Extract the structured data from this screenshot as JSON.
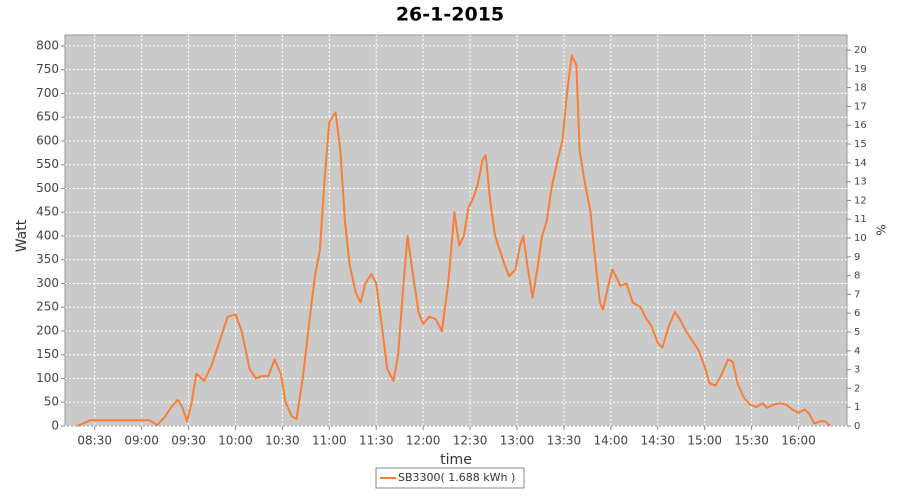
{
  "chart_data": {
    "type": "line",
    "title": "26-1-2015",
    "x_label": "time",
    "y_label": "Watt",
    "y2_label": "%",
    "xlim": [
      491,
      991
    ],
    "xticks": [
      {
        "value": 510,
        "label": "08:30"
      },
      {
        "value": 540,
        "label": "09:00"
      },
      {
        "value": 570,
        "label": "09:30"
      },
      {
        "value": 600,
        "label": "10:00"
      },
      {
        "value": 630,
        "label": "10:30"
      },
      {
        "value": 660,
        "label": "11:00"
      },
      {
        "value": 690,
        "label": "11:30"
      },
      {
        "value": 720,
        "label": "12:00"
      },
      {
        "value": 750,
        "label": "12:30"
      },
      {
        "value": 780,
        "label": "13:00"
      },
      {
        "value": 810,
        "label": "13:30"
      },
      {
        "value": 840,
        "label": "14:00"
      },
      {
        "value": 870,
        "label": "14:30"
      },
      {
        "value": 900,
        "label": "15:00"
      },
      {
        "value": 930,
        "label": "15:30"
      },
      {
        "value": 960,
        "label": "16:00"
      }
    ],
    "ylim": [
      0,
      823
    ],
    "yticks": [
      0,
      50,
      100,
      150,
      200,
      250,
      300,
      350,
      400,
      450,
      500,
      550,
      600,
      650,
      700,
      750,
      800
    ],
    "y2lim": [
      0,
      20.8
    ],
    "y2ticks": [
      0,
      1,
      2,
      3,
      4,
      5,
      6,
      7,
      8,
      9,
      10,
      11,
      12,
      13,
      14,
      15,
      16,
      17,
      18,
      19,
      20
    ],
    "grid": true,
    "legend": "bottom",
    "series": [
      {
        "name": "SB3300( 1.688 kWh )",
        "color": "#f77f38",
        "x": [
          499,
          507,
          513,
          526,
          539,
          545,
          550,
          555,
          559,
          563,
          566,
          569,
          572,
          575,
          580,
          585,
          590,
          595,
          600,
          604,
          609,
          613,
          617,
          621,
          625,
          629,
          632,
          636,
          639,
          643,
          648,
          651,
          654,
          657,
          660,
          664,
          667,
          670,
          673,
          677,
          680,
          683,
          687,
          690,
          694,
          697,
          701,
          704,
          707,
          710,
          713,
          717,
          720,
          724,
          728,
          732,
          736,
          740,
          743,
          746,
          749,
          752,
          755,
          758,
          760,
          763,
          766,
          769,
          772,
          775,
          779,
          782,
          784,
          787,
          790,
          793,
          796,
          799,
          802,
          806,
          809,
          812,
          815,
          818,
          820,
          823,
          827,
          830,
          833,
          835,
          838,
          841,
          844,
          846,
          850,
          854,
          859,
          862,
          866,
          870,
          873,
          877,
          881,
          884,
          888,
          892,
          896,
          900,
          903,
          907,
          911,
          915,
          918,
          921,
          925,
          929,
          933,
          937,
          940,
          944,
          948,
          952,
          956,
          960,
          964,
          967,
          970,
          974,
          977,
          980
        ],
        "values": [
          0,
          12,
          12,
          12,
          12,
          12,
          2,
          20,
          40,
          55,
          40,
          10,
          50,
          110,
          95,
          130,
          180,
          230,
          235,
          200,
          120,
          100,
          105,
          105,
          140,
          110,
          50,
          20,
          15,
          100,
          240,
          320,
          370,
          520,
          640,
          660,
          580,
          430,
          340,
          280,
          260,
          300,
          320,
          300,
          200,
          120,
          95,
          150,
          280,
          400,
          330,
          240,
          215,
          230,
          225,
          200,
          300,
          450,
          380,
          400,
          460,
          480,
          510,
          560,
          570,
          470,
          400,
          370,
          340,
          315,
          330,
          380,
          400,
          330,
          270,
          330,
          400,
          430,
          500,
          560,
          600,
          700,
          780,
          760,
          580,
          520,
          450,
          350,
          260,
          245,
          290,
          330,
          310,
          295,
          300,
          260,
          250,
          230,
          210,
          175,
          165,
          210,
          240,
          225,
          200,
          180,
          160,
          125,
          90,
          85,
          110,
          140,
          135,
          90,
          60,
          45,
          40,
          48,
          38,
          45,
          48,
          45,
          35,
          28,
          35,
          25,
          5,
          10,
          10,
          0
        ]
      }
    ]
  }
}
